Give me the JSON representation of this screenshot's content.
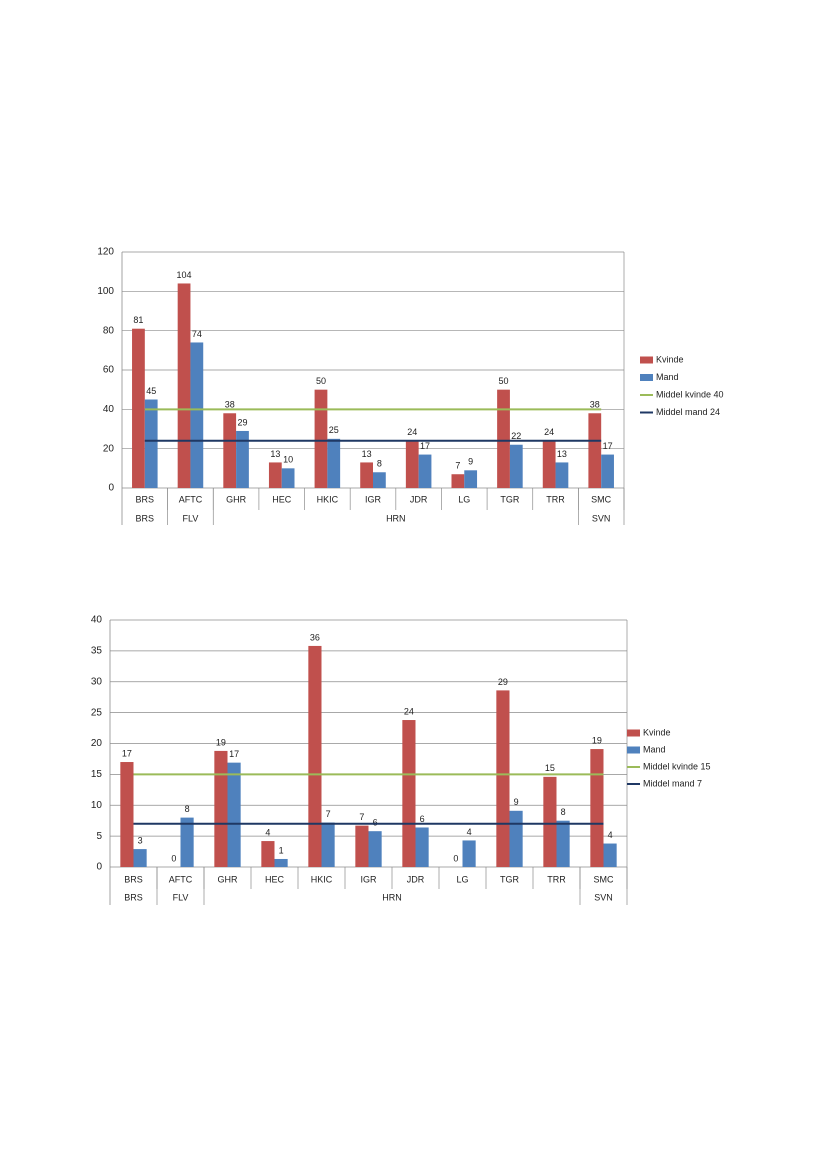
{
  "chart_data": [
    {
      "type": "bar",
      "categories": [
        "BRS",
        "AFTC",
        "GHR",
        "HEC",
        "HKIC",
        "IGR",
        "JDR",
        "LG",
        "TGR",
        "TRR",
        "SMC"
      ],
      "groups": [
        {
          "label": "BRS",
          "span": 1
        },
        {
          "label": "FLV",
          "span": 1
        },
        {
          "label": "HRN",
          "span": 8
        },
        {
          "label": "SVN",
          "span": 1
        }
      ],
      "series": [
        {
          "name": "Kvinde",
          "color": "#c0504d",
          "values": [
            81,
            104,
            38,
            13,
            50,
            13,
            24,
            7,
            50,
            24,
            38
          ]
        },
        {
          "name": "Mand",
          "color": "#4f81bd",
          "values": [
            45,
            74,
            29,
            10,
            25,
            8,
            17,
            9,
            22,
            13,
            17
          ]
        }
      ],
      "reference_lines": [
        {
          "name": "Middel kvinde 40",
          "color": "#9bbb59",
          "value": 40
        },
        {
          "name": "Middel mand 24",
          "color": "#1f3864",
          "value": 24
        }
      ],
      "ylim": [
        0,
        120
      ],
      "yticks": [
        0,
        20,
        40,
        60,
        80,
        100,
        120
      ],
      "grid": true,
      "legend": "right"
    },
    {
      "type": "bar",
      "categories": [
        "BRS",
        "AFTC",
        "GHR",
        "HEC",
        "HKIC",
        "IGR",
        "JDR",
        "LG",
        "TGR",
        "TRR",
        "SMC"
      ],
      "groups": [
        {
          "label": "BRS",
          "span": 1
        },
        {
          "label": "FLV",
          "span": 1
        },
        {
          "label": "HRN",
          "span": 8
        },
        {
          "label": "SVN",
          "span": 1
        }
      ],
      "series": [
        {
          "name": "Kvinde",
          "color": "#c0504d",
          "values": [
            17,
            0,
            18.8,
            4.2,
            35.8,
            6.7,
            23.8,
            0,
            28.6,
            14.6,
            19.1
          ],
          "value_labels": [
            "17",
            "0",
            "19",
            "4",
            "36",
            "7",
            "24",
            "0",
            "29",
            "15",
            "19"
          ]
        },
        {
          "name": "Mand",
          "color": "#4f81bd",
          "values": [
            2.9,
            8,
            16.9,
            1.3,
            7.2,
            5.8,
            6.4,
            4.3,
            9.1,
            7.5,
            3.8
          ],
          "value_labels": [
            "3",
            "8",
            "17",
            "1",
            "7",
            "6",
            "6",
            "4",
            "9",
            "8",
            "4"
          ]
        }
      ],
      "reference_lines": [
        {
          "name": "Middel kvinde 15",
          "color": "#9bbb59",
          "value": 15
        },
        {
          "name": "Middel mand 7",
          "color": "#1f3864",
          "value": 7
        }
      ],
      "ylim": [
        0,
        40
      ],
      "yticks": [
        0,
        5,
        10,
        15,
        20,
        25,
        30,
        35,
        40
      ],
      "grid": true,
      "legend": "right"
    }
  ]
}
